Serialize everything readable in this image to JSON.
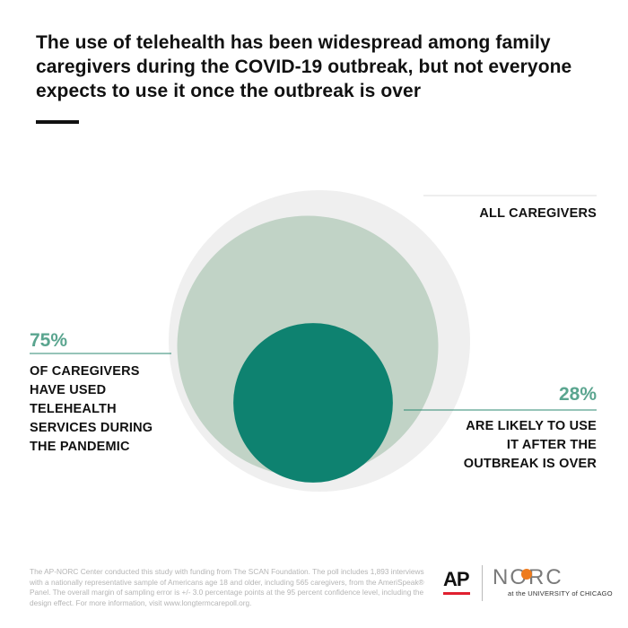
{
  "title": "The use of telehealth has been widespread among family caregivers during the COVID-19 outbreak, but not everyone expects to use it once the outbreak is over",
  "chart_data": {
    "type": "nested-circle",
    "base_label": "ALL CAREGIVERS",
    "series": [
      {
        "name": "OF CAREGIVERS HAVE USED TELEHEALTH SERVICES DURING THE PANDEMIC",
        "value_label": "75%",
        "value": 75
      },
      {
        "name": "ARE LIKELY TO USE IT AFTER THE OUTBREAK IS OVER",
        "value_label": "28%",
        "value": 28
      }
    ],
    "colors": {
      "base": "#efefef",
      "used": "#c1d3c6",
      "future": "#0e8270",
      "line": "#2c8a72"
    }
  },
  "labels": {
    "left_lines": [
      "OF CAREGIVERS",
      "HAVE USED",
      "TELEHEALTH",
      "SERVICES DURING",
      "THE PANDEMIC"
    ],
    "right_lines": [
      "ARE LIKELY TO USE",
      "IT AFTER THE",
      "OUTBREAK IS OVER"
    ]
  },
  "footnote": "The AP-NORC Center conducted this study with funding from The SCAN Foundation. The poll includes 1,893 interviews with a nationally representative sample of Americans age 18 and older, including 565 caregivers, from the AmeriSpeak® Panel. The overall margin of sampling error is +/- 3.0 percentage points at the 95 percent confidence level, including the design effect. For more information, visit www.longtermcarepoll.org.",
  "logos": {
    "ap": "AP",
    "norc": "NORC",
    "norc_sub": "at the UNIVERSITY of CHICAGO"
  }
}
